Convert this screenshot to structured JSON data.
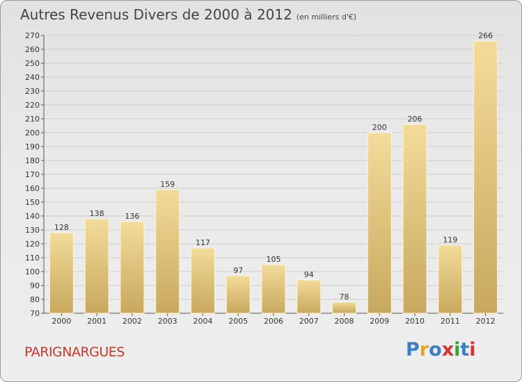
{
  "header": {
    "title": "Autres Revenus Divers de 2000 à 2012",
    "unit": "(en milliers d'€)"
  },
  "commune": "PARIGNARGUES",
  "logo": {
    "text": "Proxiti",
    "colors": [
      "#3a7fc1",
      "#e8a317",
      "#3a7fc1",
      "#d7322f",
      "#3aa03a",
      "#3a7fc1",
      "#d7322f"
    ]
  },
  "colors": {
    "bar_light": "#f3dc9a",
    "bar_dark": "#c8a85e",
    "axis": "#555555",
    "grid": "#cccccc",
    "title": "#444444",
    "commune": "#c0392b"
  },
  "chart_data": {
    "type": "bar",
    "categories": [
      "2000",
      "2001",
      "2002",
      "2003",
      "2004",
      "2005",
      "2006",
      "2007",
      "2008",
      "2009",
      "2010",
      "2011",
      "2012"
    ],
    "values": [
      128,
      138,
      136,
      159,
      117,
      97,
      105,
      94,
      78,
      200,
      206,
      119,
      266
    ],
    "ylim": [
      70,
      270
    ],
    "ytick_step": 10,
    "grid": true,
    "xlabel": "",
    "ylabel": ""
  }
}
